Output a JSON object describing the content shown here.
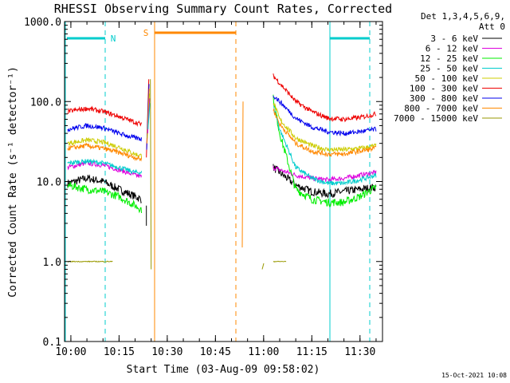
{
  "chart_data": {
    "type": "line",
    "title": "RHESSI Observing Summary Count Rates, Corrected",
    "xlabel": "Start Time (03-Aug-09 09:58:02)",
    "ylabel": "Corrected Count Rate (s⁻¹ detector⁻¹)",
    "y_scale": "log",
    "ylim": [
      0.1,
      1000
    ],
    "xlim": [
      "09:58:02",
      "11:37:00"
    ],
    "x_ticks": [
      "10:00",
      "10:15",
      "10:30",
      "10:45",
      "11:00",
      "11:15",
      "11:30"
    ],
    "y_ticks": [
      "0.1",
      "1.0",
      "10.0",
      "100.0",
      "1000.0"
    ],
    "grid": false,
    "legend_position": "top-right",
    "legend_header": [
      "Det 1,3,4,5,6,9,",
      "Att 0"
    ],
    "timestamp": "15-Oct-2021 10:08",
    "series": [
      {
        "name": "3 - 6 keV",
        "color": "#000000",
        "seg1": {
          "x": [
            "09:59",
            "10:05",
            "10:10",
            "10:15",
            "10:20",
            "10:22"
          ],
          "y": [
            9.5,
            11,
            10,
            8,
            6.5,
            6
          ]
        },
        "seg2": {
          "x": [
            "11:03",
            "11:05",
            "11:10",
            "11:15",
            "11:20",
            "11:25",
            "11:30",
            "11:35"
          ],
          "y": [
            15,
            13,
            9,
            7.5,
            7,
            7.5,
            8,
            8.5
          ]
        }
      },
      {
        "name": "6 - 12 keV",
        "color": "#dd00dd",
        "seg1": {
          "x": [
            "09:59",
            "10:05",
            "10:10",
            "10:15",
            "10:20",
            "10:22"
          ],
          "y": [
            15,
            17,
            16,
            14,
            12,
            11.5
          ]
        },
        "seg2": {
          "x": [
            "11:03",
            "11:05",
            "11:10",
            "11:15",
            "11:20",
            "11:25",
            "11:30",
            "11:35"
          ],
          "y": [
            15,
            14,
            12,
            11,
            10.5,
            11,
            12,
            13
          ]
        }
      },
      {
        "name": "12 - 25 keV",
        "color": "#00ee00",
        "seg1": {
          "x": [
            "09:59",
            "10:05",
            "10:10",
            "10:15",
            "10:20",
            "10:22"
          ],
          "y": [
            9,
            8,
            7.5,
            6.5,
            5,
            4.5
          ]
        },
        "seg2": {
          "x": [
            "11:03",
            "11:05",
            "11:10",
            "11:15",
            "11:20",
            "11:25",
            "11:30",
            "11:35"
          ],
          "y": [
            110,
            40,
            8,
            6,
            5.5,
            5.5,
            6.5,
            8.5
          ]
        }
      },
      {
        "name": "25 - 50 keV",
        "color": "#00cccc",
        "seg1": {
          "x": [
            "09:59",
            "10:05",
            "10:10",
            "10:15",
            "10:20",
            "10:22"
          ],
          "y": [
            17,
            18,
            17,
            15,
            13,
            13
          ]
        },
        "seg2": {
          "x": [
            "11:03",
            "11:05",
            "11:10",
            "11:15",
            "11:20",
            "11:25",
            "11:30",
            "11:35"
          ],
          "y": [
            90,
            45,
            15,
            11,
            9.5,
            9.5,
            10.5,
            12
          ]
        }
      },
      {
        "name": "50 - 100 keV",
        "color": "#cccc00",
        "seg1": {
          "x": [
            "09:59",
            "10:05",
            "10:10",
            "10:15",
            "10:20",
            "10:22"
          ],
          "y": [
            30,
            33,
            31,
            27,
            22,
            21
          ]
        },
        "seg2": {
          "x": [
            "11:03",
            "11:05",
            "11:10",
            "11:15",
            "11:20",
            "11:25",
            "11:30",
            "11:35"
          ],
          "y": [
            100,
            60,
            35,
            28,
            25,
            25,
            26,
            28
          ]
        }
      },
      {
        "name": "100 - 300 keV",
        "color": "#ee0000",
        "seg1": {
          "x": [
            "09:59",
            "10:05",
            "10:10",
            "10:15",
            "10:20",
            "10:22"
          ],
          "y": [
            75,
            82,
            75,
            65,
            55,
            52
          ]
        },
        "seg2": {
          "x": [
            "11:03",
            "11:05",
            "11:10",
            "11:15",
            "11:20",
            "11:25",
            "11:30",
            "11:35"
          ],
          "y": [
            210,
            170,
            100,
            75,
            62,
            60,
            63,
            70
          ]
        }
      },
      {
        "name": "300 - 800 keV",
        "color": "#0000ee",
        "seg1": {
          "x": [
            "09:59",
            "10:05",
            "10:10",
            "10:15",
            "10:20",
            "10:22"
          ],
          "y": [
            45,
            50,
            47,
            40,
            35,
            34
          ]
        },
        "seg2": {
          "x": [
            "11:03",
            "11:05",
            "11:10",
            "11:15",
            "11:20",
            "11:25",
            "11:30",
            "11:35"
          ],
          "y": [
            120,
            100,
            62,
            48,
            42,
            40,
            42,
            45
          ]
        }
      },
      {
        "name": "800 - 7000 keV",
        "color": "#ff8800",
        "seg1": {
          "x": [
            "09:59",
            "10:05",
            "10:10",
            "10:15",
            "10:20",
            "10:22"
          ],
          "y": [
            26,
            28,
            26,
            23,
            20,
            19
          ]
        },
        "seg2": {
          "x": [
            "11:03",
            "11:05",
            "11:10",
            "11:15",
            "11:20",
            "11:25",
            "11:30",
            "11:35"
          ],
          "y": [
            80,
            52,
            30,
            24,
            22,
            22,
            24,
            26
          ]
        }
      },
      {
        "name": "7000 - 15000 keV",
        "color": "#999900",
        "seg1": {
          "x": [
            "09:59",
            "10:05",
            "10:10",
            "10:13"
          ],
          "y": [
            1.0,
            1.0,
            1.0,
            1.0
          ]
        },
        "seg2": {
          "x": [
            "11:03",
            "11:07"
          ],
          "y": [
            1.0,
            1.0
          ]
        }
      }
    ],
    "annotations": [
      {
        "text": "N",
        "time": "10:13",
        "color": "#00cccc"
      },
      {
        "text": "S",
        "time": "10:25",
        "color": "#ff8800"
      }
    ]
  }
}
